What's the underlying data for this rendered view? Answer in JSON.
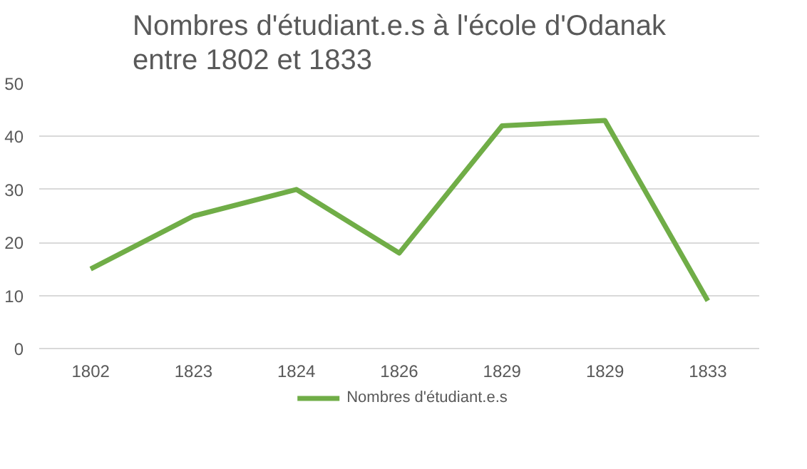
{
  "chart_data": {
    "type": "line",
    "title": "Nombres d'étudiant.e.s à l'école d'Odanak entre 1802 et 1833",
    "categories": [
      "1802",
      "1823",
      "1824",
      "1826",
      "1829",
      "1829",
      "1833"
    ],
    "series": [
      {
        "name": "Nombres d'étudiant.e.s",
        "color": "#70ad47",
        "values": [
          15,
          25,
          30,
          18,
          42,
          43,
          9
        ]
      }
    ],
    "ylim": [
      0,
      50
    ],
    "yticks": [
      0,
      10,
      20,
      30,
      40,
      50
    ],
    "grid": "y",
    "legend": "bottom",
    "marker": "none",
    "line_style": "solid"
  }
}
